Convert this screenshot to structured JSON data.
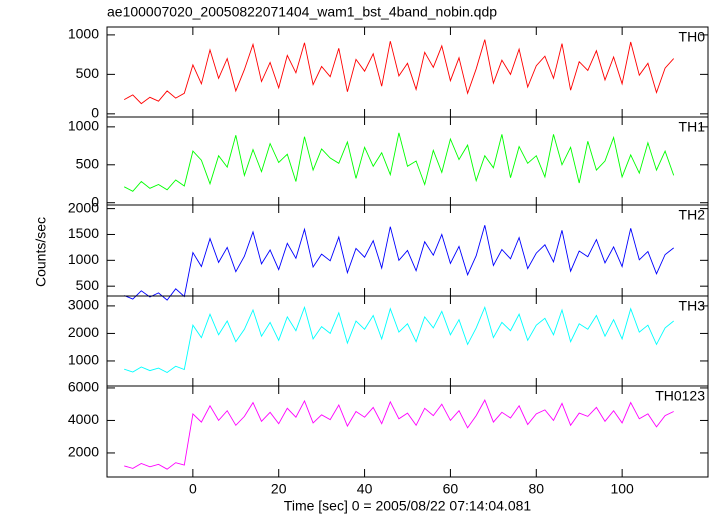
{
  "chart_data": [
    {
      "type": "line",
      "title": "ae100007020_20050822071404_wam1_bst_4band_nobin.qdp",
      "x": [
        -16,
        -14,
        -12,
        -10,
        -8,
        -6,
        -4,
        -2,
        0,
        2,
        4,
        6,
        8,
        10,
        12,
        14,
        16,
        18,
        20,
        22,
        24,
        26,
        28,
        30,
        32,
        34,
        36,
        38,
        40,
        42,
        44,
        46,
        48,
        50,
        52,
        54,
        56,
        58,
        60,
        62,
        64,
        66,
        68,
        70,
        72,
        74,
        76,
        78,
        80,
        82,
        84,
        86,
        88,
        90,
        92,
        94,
        96,
        98,
        100,
        102,
        104,
        106,
        108,
        110,
        112
      ],
      "series": [
        {
          "name": "TH0",
          "color": "#ff0000",
          "values": [
            180,
            240,
            130,
            210,
            160,
            290,
            200,
            260,
            620,
            380,
            810,
            450,
            700,
            290,
            560,
            880,
            410,
            650,
            330,
            740,
            520,
            900,
            370,
            600,
            470,
            830,
            280,
            690,
            540,
            760,
            350,
            920,
            480,
            640,
            310,
            780,
            590,
            860,
            420,
            710,
            260,
            570,
            940,
            390,
            680,
            500,
            820,
            340,
            610,
            730,
            450,
            890,
            300,
            660,
            550,
            800,
            430,
            720,
            380,
            910,
            490,
            640,
            270,
            580,
            700
          ]
        }
      ],
      "ylim": [
        -40,
        1100
      ],
      "yticks": [
        0,
        500,
        1000
      ]
    },
    {
      "type": "line",
      "x": [
        -16,
        -14,
        -12,
        -10,
        -8,
        -6,
        -4,
        -2,
        0,
        2,
        4,
        6,
        8,
        10,
        12,
        14,
        16,
        18,
        20,
        22,
        24,
        26,
        28,
        30,
        32,
        34,
        36,
        38,
        40,
        42,
        44,
        46,
        48,
        50,
        52,
        54,
        56,
        58,
        60,
        62,
        64,
        66,
        68,
        70,
        72,
        74,
        76,
        78,
        80,
        82,
        84,
        86,
        88,
        90,
        92,
        94,
        96,
        98,
        100,
        102,
        104,
        106,
        108,
        110,
        112
      ],
      "series": [
        {
          "name": "TH1",
          "color": "#00ff00",
          "values": [
            210,
            150,
            280,
            190,
            240,
            170,
            300,
            220,
            680,
            560,
            250,
            620,
            470,
            890,
            360,
            700,
            410,
            780,
            530,
            640,
            280,
            870,
            430,
            710,
            590,
            520,
            800,
            320,
            730,
            480,
            660,
            370,
            920,
            480,
            550,
            240,
            690,
            400,
            840,
            570,
            760,
            290,
            620,
            460,
            900,
            330,
            740,
            520,
            620,
            340,
            900,
            500,
            730,
            260,
            810,
            430,
            550,
            860,
            340,
            630,
            390,
            790,
            430,
            680,
            360
          ]
        }
      ],
      "ylim": [
        -30,
        1130
      ],
      "yticks": [
        0,
        500,
        1000
      ]
    },
    {
      "type": "line",
      "ylabel": "Counts/sec",
      "x": [
        -16,
        -14,
        -12,
        -10,
        -8,
        -6,
        -4,
        -2,
        0,
        2,
        4,
        6,
        8,
        10,
        12,
        14,
        16,
        18,
        20,
        22,
        24,
        26,
        28,
        30,
        32,
        34,
        36,
        38,
        40,
        42,
        44,
        46,
        48,
        50,
        52,
        54,
        56,
        58,
        60,
        62,
        64,
        66,
        68,
        70,
        72,
        74,
        76,
        78,
        80,
        82,
        84,
        86,
        88,
        90,
        92,
        94,
        96,
        98,
        100,
        102,
        104,
        106,
        108,
        110,
        112
      ],
      "series": [
        {
          "name": "TH2",
          "color": "#0000ff",
          "values": [
            320,
            250,
            410,
            290,
            370,
            230,
            450,
            300,
            1150,
            880,
            1420,
            960,
            1250,
            780,
            1080,
            1550,
            930,
            1200,
            820,
            1330,
            1040,
            1600,
            870,
            1120,
            990,
            1450,
            760,
            1230,
            1060,
            1380,
            850,
            1650,
            1000,
            1190,
            800,
            1360,
            1100,
            1500,
            940,
            1270,
            720,
            1090,
            1680,
            900,
            1210,
            1030,
            1440,
            840,
            1140,
            1300,
            970,
            1580,
            790,
            1180,
            1070,
            1400,
            950,
            1260,
            880,
            1620,
            1010,
            1170,
            740,
            1110,
            1240
          ]
        }
      ],
      "ylim": [
        310,
        2070
      ],
      "yticks": [
        500,
        1000,
        1500,
        2000
      ]
    },
    {
      "type": "line",
      "x": [
        -16,
        -14,
        -12,
        -10,
        -8,
        -6,
        -4,
        -2,
        0,
        2,
        4,
        6,
        8,
        10,
        12,
        14,
        16,
        18,
        20,
        22,
        24,
        26,
        28,
        30,
        32,
        34,
        36,
        38,
        40,
        42,
        44,
        46,
        48,
        50,
        52,
        54,
        56,
        58,
        60,
        62,
        64,
        66,
        68,
        70,
        72,
        74,
        76,
        78,
        80,
        82,
        84,
        86,
        88,
        90,
        92,
        94,
        96,
        98,
        100,
        102,
        104,
        106,
        108,
        110,
        112
      ],
      "series": [
        {
          "name": "TH3",
          "color": "#00ffff",
          "values": [
            700,
            600,
            780,
            650,
            740,
            580,
            810,
            690,
            2300,
            1850,
            2700,
            1950,
            2450,
            1700,
            2150,
            2850,
            1900,
            2400,
            1750,
            2600,
            2100,
            2950,
            1800,
            2250,
            2000,
            2750,
            1650,
            2450,
            2150,
            2650,
            1800,
            2900,
            2050,
            2350,
            1700,
            2600,
            2200,
            2800,
            1950,
            2500,
            1600,
            2200,
            2950,
            1850,
            2400,
            2100,
            2700,
            1750,
            2300,
            2550,
            1950,
            2850,
            1700,
            2350,
            2150,
            2650,
            1900,
            2500,
            1800,
            2900,
            2050,
            2300,
            1600,
            2200,
            2450
          ]
        }
      ],
      "ylim": [
        90,
        3360
      ],
      "yticks": [
        1000,
        2000,
        3000
      ]
    },
    {
      "type": "line",
      "xlabel": "Time [sec] 0 = 2005/08/22 07:14:04.081",
      "x": [
        -16,
        -14,
        -12,
        -10,
        -8,
        -6,
        -4,
        -2,
        0,
        2,
        4,
        6,
        8,
        10,
        12,
        14,
        16,
        18,
        20,
        22,
        24,
        26,
        28,
        30,
        32,
        34,
        36,
        38,
        40,
        42,
        44,
        46,
        48,
        50,
        52,
        54,
        56,
        58,
        60,
        62,
        64,
        66,
        68,
        70,
        72,
        74,
        76,
        78,
        80,
        82,
        84,
        86,
        88,
        90,
        92,
        94,
        96,
        98,
        100,
        102,
        104,
        106,
        108,
        110,
        112
      ],
      "series": [
        {
          "name": "TH0123",
          "color": "#ff00ff",
          "values": [
            1200,
            1050,
            1350,
            1150,
            1300,
            1000,
            1400,
            1250,
            4400,
            3900,
            4900,
            4000,
            4600,
            3700,
            4250,
            5100,
            3950,
            4500,
            3800,
            4750,
            4200,
            5200,
            3850,
            4350,
            4050,
            4950,
            3650,
            4550,
            4200,
            4800,
            3800,
            5150,
            4100,
            4450,
            3700,
            4750,
            4300,
            5000,
            4000,
            4600,
            3550,
            4300,
            5250,
            3900,
            4500,
            4150,
            4900,
            3750,
            4400,
            4650,
            4000,
            5050,
            3700,
            4450,
            4250,
            4800,
            3950,
            4600,
            3850,
            5100,
            4100,
            4400,
            3600,
            4300,
            4550
          ]
        }
      ],
      "ylim": [
        520,
        6120
      ],
      "yticks": [
        2000,
        4000,
        6000
      ],
      "xlim": [
        -20,
        120
      ],
      "xticks": [
        0,
        20,
        40,
        60,
        80,
        100
      ]
    }
  ]
}
